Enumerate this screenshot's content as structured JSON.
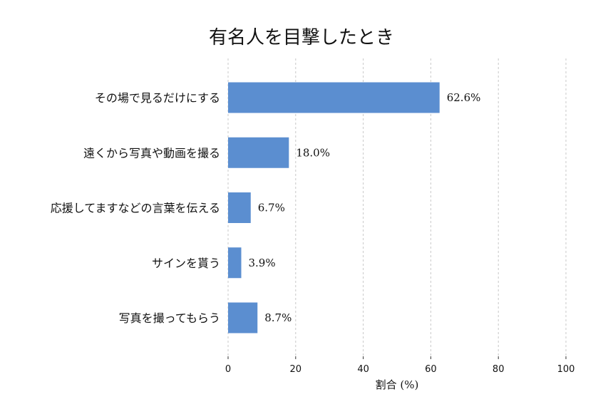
{
  "chart_data": {
    "type": "bar",
    "orientation": "horizontal",
    "title": "有名人を目撃したとき",
    "xlabel": "割合 (%)",
    "ylabel": "",
    "xlim": [
      0,
      100
    ],
    "xticks": [
      0,
      20,
      40,
      60,
      80,
      100
    ],
    "grid": true,
    "bar_color": "#5b8ed0",
    "categories": [
      "その場で見るだけにする",
      "遠くから写真や動画を撮る",
      "応援してますなどの言葉を伝える",
      "サインを貰う",
      "写真を撮ってもらう"
    ],
    "values": [
      62.6,
      18.0,
      6.7,
      3.9,
      8.7
    ],
    "value_labels": [
      "62.6%",
      "18.0%",
      "6.7%",
      "3.9%",
      "8.7%"
    ]
  }
}
